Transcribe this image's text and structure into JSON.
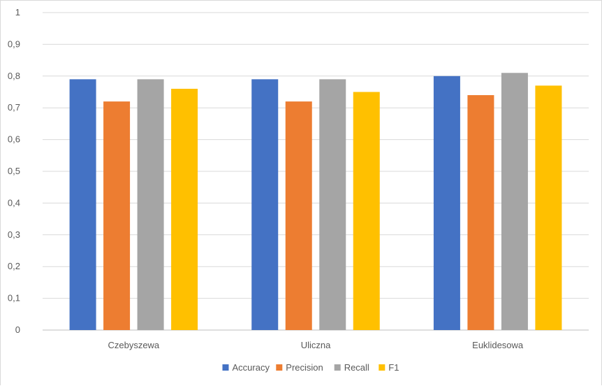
{
  "chart_data": {
    "type": "bar",
    "categories": [
      "Czebyszewa",
      "Uliczna",
      "Euklidesowa"
    ],
    "series": [
      {
        "name": "Accuracy",
        "values": [
          0.79,
          0.79,
          0.8
        ],
        "color": "#4472C4"
      },
      {
        "name": "Precision",
        "values": [
          0.72,
          0.72,
          0.74
        ],
        "color": "#ED7D31"
      },
      {
        "name": "Recall",
        "values": [
          0.79,
          0.79,
          0.81
        ],
        "color": "#A5A5A5"
      },
      {
        "name": "F1",
        "values": [
          0.76,
          0.75,
          0.77
        ],
        "color": "#FFC000"
      }
    ],
    "ylim": [
      0,
      1
    ],
    "yticks": [
      "0",
      "0,1",
      "0,2",
      "0,3",
      "0,4",
      "0,5",
      "0,6",
      "0,7",
      "0,8",
      "0,9",
      "1"
    ],
    "grid": true,
    "legend_position": "bottom"
  }
}
